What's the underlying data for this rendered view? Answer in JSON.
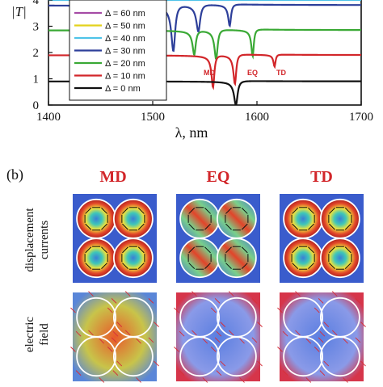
{
  "chart_data": {
    "type": "line",
    "ylabel": "|T|",
    "xlabel": "λ, nm",
    "xlim": [
      1400,
      1700
    ],
    "ylim": [
      0,
      4
    ],
    "x_ticks": [
      "1400",
      "1500",
      "1600",
      "1700"
    ],
    "y_ticks": [
      "0",
      "1",
      "2",
      "3",
      "4"
    ],
    "legend_placement": "top-left",
    "series": [
      {
        "name": "Δ = 60 nm",
        "color": "#a64ca6",
        "offset": 5,
        "dips": []
      },
      {
        "name": "Δ = 50 nm",
        "color": "#e3d21c",
        "offset": 4.5,
        "dips": []
      },
      {
        "name": "Δ = 40 nm",
        "color": "#4fc3e8",
        "offset": 4,
        "dips": []
      },
      {
        "name": "Δ = 30 nm",
        "color": "#2d3f9a",
        "offset": 3.8,
        "dips": [
          {
            "x": 1520,
            "depth": 1.7,
            "w": 2.2
          },
          {
            "x": 1544,
            "depth": 1.0,
            "w": 2.2
          },
          {
            "x": 1574,
            "depth": 0.8,
            "w": 1.6
          }
        ]
      },
      {
        "name": "Δ = 20 nm",
        "color": "#3aa935",
        "offset": 2.85,
        "dips": [
          {
            "x": 1540,
            "depth": 0.9,
            "w": 1.8
          },
          {
            "x": 1561,
            "depth": 1.1,
            "w": 1.8
          },
          {
            "x": 1596,
            "depth": 1.0,
            "w": 1.4
          }
        ]
      },
      {
        "name": "Δ = 10 nm",
        "color": "#d2262a",
        "offset": 1.9,
        "dips": [
          {
            "x": 1558,
            "depth": 1.2,
            "w": 1.6
          },
          {
            "x": 1579,
            "depth": 1.1,
            "w": 1.6
          },
          {
            "x": 1617,
            "depth": 0.45,
            "w": 1.2
          }
        ]
      },
      {
        "name": "Δ = 0 nm",
        "color": "#111111",
        "offset": 0.9,
        "dips": [
          {
            "x": 1580,
            "depth": 0.9,
            "w": 2.0
          }
        ]
      }
    ],
    "annotations": [
      "MD",
      "EQ",
      "TD"
    ]
  },
  "panel_b": {
    "label": "(b)",
    "columns": [
      "MD",
      "EQ",
      "TD"
    ],
    "rows": [
      {
        "line1": "displacement",
        "line2": "currents"
      },
      {
        "line1": "electric",
        "line2": "field"
      }
    ]
  }
}
